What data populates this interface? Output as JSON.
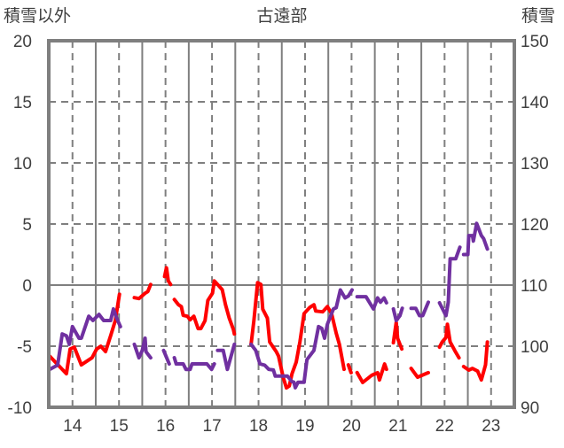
{
  "chart_data": {
    "type": "line",
    "title": "古遠部",
    "ylabel_left": "積雪以外",
    "ylabel_right": "積雪",
    "xlim": [
      13.49,
      23.5
    ],
    "ylim_left": [
      -10,
      20
    ],
    "ylim_right": [
      90,
      150
    ],
    "x_ticks": [
      14,
      15,
      16,
      17,
      18,
      19,
      20,
      21,
      22,
      23
    ],
    "y_ticks_left": [
      20,
      15,
      10,
      5,
      0,
      -5,
      -10
    ],
    "y_ticks_right": [
      150,
      140,
      130,
      120,
      110,
      100,
      90
    ],
    "grid": true,
    "colors": {
      "red_series": "#ff0000",
      "purple_series": "#7030a0",
      "frame": "#7f7f7f"
    },
    "series": [
      {
        "key": "red",
        "axis": "left",
        "segments": [
          [
            [
              13.51,
              -5.81
            ],
            [
              13.87,
              -7.25
            ],
            [
              13.95,
              -5.23
            ],
            [
              14.04,
              -5.08
            ],
            [
              14.19,
              -6.53
            ],
            [
              14.42,
              -5.95
            ],
            [
              14.52,
              -5.23
            ],
            [
              14.61,
              -5.01
            ],
            [
              14.71,
              -5.44
            ],
            [
              14.82,
              -4.14
            ],
            [
              14.92,
              -2.91
            ],
            [
              15.01,
              -0.75
            ]
          ],
          [
            [
              15.33,
              -1.03
            ],
            [
              15.43,
              -1.1
            ],
            [
              15.56,
              -0.67
            ],
            [
              15.62,
              -0.53
            ],
            [
              15.68,
              0.05
            ]
          ],
          [
            [
              15.98,
              0.7
            ],
            [
              16.02,
              1.42
            ],
            [
              16.06,
              0.34
            ],
            [
              16.11,
              0.05
            ]
          ],
          [
            [
              16.19,
              -1.18
            ],
            [
              16.28,
              -1.61
            ],
            [
              16.34,
              -1.76
            ],
            [
              16.38,
              -2.48
            ],
            [
              16.47,
              -2.55
            ],
            [
              16.53,
              -2.84
            ],
            [
              16.61,
              -2.55
            ],
            [
              16.7,
              -3.56
            ],
            [
              16.76,
              -3.56
            ],
            [
              16.85,
              -2.91
            ],
            [
              16.91,
              -1.25
            ],
            [
              17.01,
              -0.67
            ],
            [
              17.05,
              0.34
            ],
            [
              17.12,
              0.05
            ],
            [
              17.22,
              -0.38
            ],
            [
              17.29,
              -1.61
            ],
            [
              17.37,
              -2.7
            ],
            [
              17.46,
              -3.64
            ],
            [
              17.48,
              -4.0
            ]
          ],
          [
            [
              17.84,
              -4.87
            ],
            [
              17.9,
              -2.91
            ],
            [
              17.98,
              0.2
            ],
            [
              18.05,
              0.05
            ],
            [
              18.09,
              -1.97
            ],
            [
              18.19,
              -2.7
            ],
            [
              18.24,
              -4.65
            ],
            [
              18.38,
              -5.44
            ],
            [
              18.43,
              -5.81
            ],
            [
              18.53,
              -7.54
            ],
            [
              18.6,
              -8.41
            ],
            [
              18.66,
              -8.26
            ],
            [
              18.72,
              -7.25
            ],
            [
              18.81,
              -6.31
            ],
            [
              18.89,
              -4.65
            ],
            [
              18.98,
              -2.33
            ],
            [
              19.1,
              -1.83
            ],
            [
              19.19,
              -1.61
            ],
            [
              19.23,
              -2.12
            ],
            [
              19.38,
              -2.19
            ],
            [
              19.48,
              -1.76
            ],
            [
              19.57,
              -2.33
            ],
            [
              19.67,
              -3.93
            ],
            [
              19.74,
              -4.87
            ],
            [
              19.84,
              -6.89
            ]
          ],
          [
            [
              19.93,
              -6.53
            ],
            [
              19.99,
              -7.17
            ]
          ],
          [
            [
              20.12,
              -7.17
            ],
            [
              20.24,
              -7.97
            ],
            [
              20.43,
              -7.39
            ],
            [
              20.56,
              -7.17
            ],
            [
              20.6,
              -7.76
            ],
            [
              20.71,
              -6.46
            ],
            [
              20.75,
              -6.89
            ]
          ],
          [
            [
              20.9,
              -4.72
            ],
            [
              20.96,
              -3.06
            ],
            [
              20.99,
              -4.36
            ],
            [
              21.08,
              -5.23
            ]
          ],
          [
            [
              21.28,
              -6.82
            ],
            [
              21.42,
              -7.54
            ],
            [
              21.51,
              -7.39
            ],
            [
              21.65,
              -7.17
            ]
          ],
          [
            [
              21.89,
              -5.08
            ],
            [
              21.95,
              -4.65
            ],
            [
              22.03,
              -4.29
            ],
            [
              22.06,
              -3.2
            ],
            [
              22.12,
              -4.65
            ],
            [
              22.22,
              -5.37
            ],
            [
              22.31,
              -5.95
            ]
          ],
          [
            [
              22.41,
              -6.67
            ],
            [
              22.52,
              -6.96
            ],
            [
              22.6,
              -6.82
            ],
            [
              22.71,
              -7.04
            ],
            [
              22.79,
              -7.76
            ],
            [
              22.88,
              -6.53
            ],
            [
              22.92,
              -4.65
            ]
          ]
        ]
      },
      {
        "key": "purple",
        "axis": "right",
        "segments": [
          [
            [
              13.51,
              96.2
            ],
            [
              13.68,
              96.9
            ],
            [
              13.78,
              102.0
            ],
            [
              13.87,
              101.7
            ],
            [
              13.93,
              100.3
            ],
            [
              14.0,
              103.2
            ],
            [
              14.14,
              101.3
            ],
            [
              14.19,
              101.3
            ],
            [
              14.35,
              104.9
            ],
            [
              14.44,
              104.2
            ],
            [
              14.57,
              105.2
            ],
            [
              14.67,
              104.2
            ],
            [
              14.82,
              104.2
            ],
            [
              14.88,
              106.1
            ],
            [
              14.95,
              104.6
            ],
            [
              15.03,
              103.2
            ]
          ],
          [
            [
              15.33,
              100.3
            ],
            [
              15.43,
              98.1
            ],
            [
              15.5,
              99.3
            ],
            [
              15.56,
              101.3
            ],
            [
              15.58,
              99.1
            ],
            [
              15.68,
              98.1
            ]
          ],
          [
            [
              15.96,
              99.3
            ],
            [
              16.08,
              97.1
            ]
          ],
          [
            [
              16.19,
              98.1
            ],
            [
              16.23,
              97.1
            ],
            [
              16.38,
              97.1
            ],
            [
              16.44,
              96.2
            ],
            [
              16.53,
              96.2
            ],
            [
              16.57,
              97.1
            ],
            [
              16.89,
              97.1
            ],
            [
              16.99,
              96.2
            ],
            [
              17.05,
              97.1
            ]
          ],
          [
            [
              17.12,
              99.3
            ],
            [
              17.24,
              99.3
            ],
            [
              17.33,
              96.2
            ],
            [
              17.48,
              100.3
            ]
          ],
          [
            [
              17.84,
              100.3
            ],
            [
              17.94,
              99.3
            ],
            [
              18.03,
              97.1
            ],
            [
              18.13,
              96.9
            ],
            [
              18.22,
              96.2
            ],
            [
              18.32,
              96.1
            ],
            [
              18.36,
              95.1
            ],
            [
              18.62,
              95.1
            ],
            [
              18.72,
              94.2
            ],
            [
              18.76,
              94.1
            ],
            [
              18.79,
              93.2
            ],
            [
              18.85,
              94.1
            ],
            [
              18.98,
              94.1
            ],
            [
              19.04,
              97.8
            ],
            [
              19.14,
              98.8
            ],
            [
              19.19,
              99.3
            ],
            [
              19.29,
              103.2
            ],
            [
              19.36,
              102.9
            ],
            [
              19.42,
              101.3
            ],
            [
              19.48,
              103.6
            ],
            [
              19.61,
              106.1
            ],
            [
              19.67,
              106.3
            ],
            [
              19.76,
              109.2
            ],
            [
              19.86,
              107.9
            ],
            [
              19.93,
              108.2
            ],
            [
              20.01,
              109.2
            ]
          ],
          [
            [
              20.12,
              108.1
            ],
            [
              20.31,
              108.1
            ],
            [
              20.47,
              106.1
            ],
            [
              20.56,
              107.9
            ],
            [
              20.62,
              107.2
            ],
            [
              20.7,
              107.9
            ],
            [
              20.75,
              107.1
            ]
          ],
          [
            [
              20.9,
              106.1
            ],
            [
              20.96,
              104.2
            ],
            [
              21.04,
              105.0
            ],
            [
              21.09,
              106.2
            ]
          ],
          [
            [
              21.28,
              106.2
            ],
            [
              21.38,
              106.2
            ],
            [
              21.46,
              105.0
            ],
            [
              21.53,
              105.0
            ],
            [
              21.65,
              107.2
            ]
          ],
          [
            [
              21.89,
              107.1
            ],
            [
              22.03,
              105.0
            ],
            [
              22.08,
              107.2
            ],
            [
              22.12,
              114.3
            ],
            [
              22.24,
              114.3
            ],
            [
              22.33,
              116.2
            ]
          ],
          [
            [
              22.41,
              115.0
            ],
            [
              22.5,
              115.0
            ],
            [
              22.52,
              118.1
            ],
            [
              22.6,
              118.1
            ],
            [
              22.62,
              117.2
            ],
            [
              22.69,
              120.1
            ],
            [
              22.79,
              118.1
            ],
            [
              22.84,
              117.6
            ],
            [
              22.92,
              115.9
            ]
          ]
        ]
      }
    ]
  }
}
